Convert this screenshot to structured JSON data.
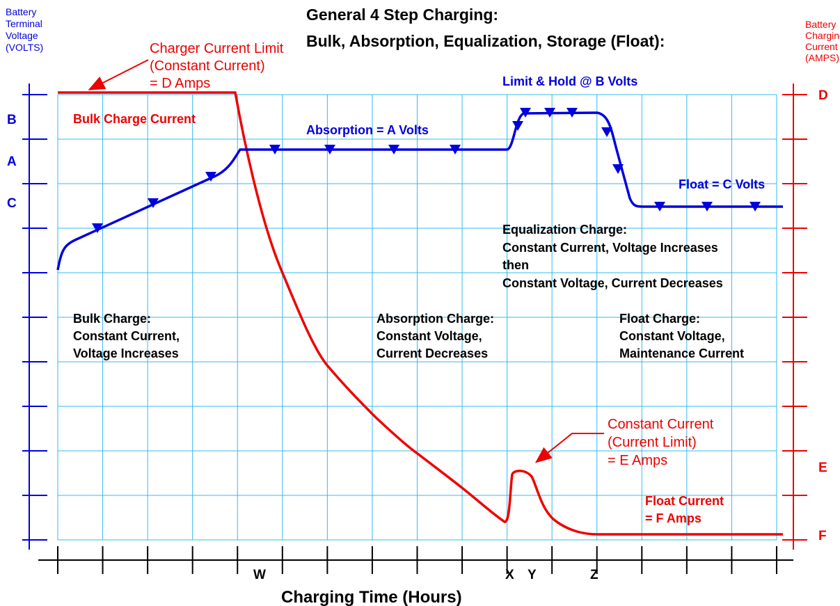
{
  "title": {
    "line1": "General 4 Step Charging:",
    "line2": "Bulk, Absorption, Equalization, Storage (Float):"
  },
  "left_axis": {
    "label": [
      "Battery",
      "Terminal",
      "Voltage",
      "(VOLTS)"
    ],
    "ticks": [
      "B",
      "A",
      "C"
    ]
  },
  "right_axis": {
    "label": [
      "Battery",
      "Charging",
      "Current",
      "(AMPS)"
    ],
    "ticks": [
      "D",
      "E",
      "F"
    ]
  },
  "x_axis": {
    "label": "Charging Time (Hours)",
    "ticks": [
      "W",
      "X",
      "Y",
      "Z"
    ]
  },
  "annotations": {
    "charger_limit": [
      "Charger Current Limit",
      "(Constant Current)",
      "= D Amps"
    ],
    "bulk_current": "Bulk Charge Current",
    "absorption_volts": "Absorption = A Volts",
    "limit_hold": "Limit & Hold @ B Volts",
    "float_volts": "Float = C Volts",
    "equalization": [
      "Equalization Charge:",
      "Constant Current, Voltage Increases",
      "then",
      "Constant Voltage, Current Decreases"
    ],
    "bulk_charge": [
      "Bulk Charge:",
      "Constant Current,",
      "Voltage Increases"
    ],
    "absorption_charge": [
      "Absorption Charge:",
      "Constant Voltage,",
      "Current Decreases"
    ],
    "float_charge": [
      "Float Charge:",
      "Constant Voltage,",
      "Maintenance Current"
    ],
    "constant_current": [
      "Constant Current",
      "(Current Limit)",
      "= E Amps"
    ],
    "float_current": [
      "Float Current",
      "= F Amps"
    ]
  }
}
